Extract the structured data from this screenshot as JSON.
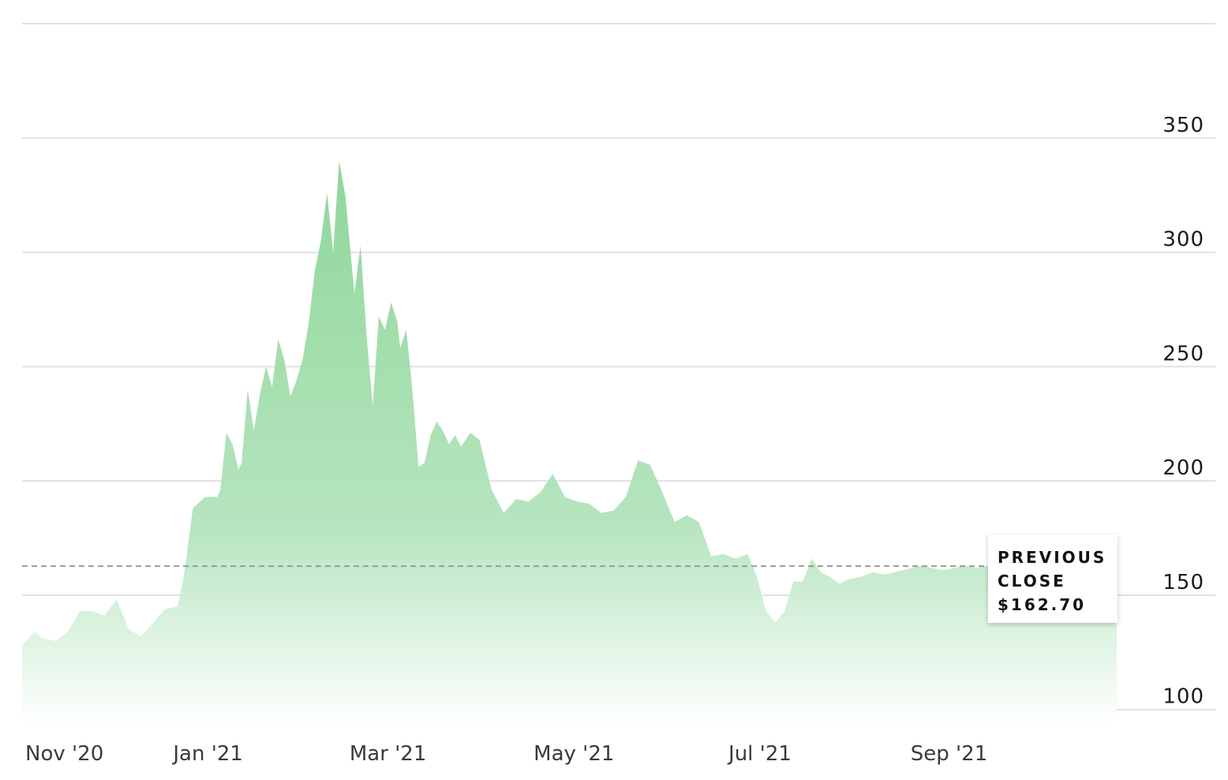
{
  "colors": {
    "area_top": "#8fd69a",
    "area_bottom": "#ffffff",
    "grid": "#e1e1e1",
    "reference_line": "#9a9a9a",
    "text": "#1a1a1a"
  },
  "previous_close": {
    "label_line1": "PREVIOUS",
    "label_line2": "CLOSE",
    "value_text": "$162.70",
    "value": 162.7
  },
  "chart_data": {
    "type": "area",
    "title": "",
    "xlabel": "",
    "ylabel": "",
    "ylim": [
      93,
      400
    ],
    "xlim": [
      "2020-11-01",
      "2021-10-26"
    ],
    "yticks": [
      100,
      150,
      200,
      250,
      300,
      350
    ],
    "ytick_labels": [
      "100",
      "150",
      "200",
      "250",
      "300",
      "350"
    ],
    "xticks": [
      "2020-11-01",
      "2021-01-01",
      "2021-03-01",
      "2021-05-01",
      "2021-07-01",
      "2021-09-01"
    ],
    "xtick_labels": [
      "Nov '20",
      "Jan '21",
      "Mar '21",
      "May '21",
      "Jul '21",
      "Sep '21"
    ],
    "grid": true,
    "legend": "none",
    "series": [
      {
        "x": [
          "2020-11-01",
          "2020-11-05",
          "2020-11-08",
          "2020-11-12",
          "2020-11-16",
          "2020-11-20",
          "2020-11-24",
          "2020-11-28",
          "2020-12-02",
          "2020-12-06",
          "2020-12-10",
          "2020-12-14",
          "2020-12-18",
          "2020-12-22",
          "2020-12-24",
          "2020-12-27",
          "2020-12-31",
          "2021-01-04",
          "2021-01-05",
          "2021-01-07",
          "2021-01-09",
          "2021-01-11",
          "2021-01-12",
          "2021-01-14",
          "2021-01-16",
          "2021-01-18",
          "2021-01-20",
          "2021-01-22",
          "2021-01-24",
          "2021-01-26",
          "2021-01-28",
          "2021-01-30",
          "2021-02-01",
          "2021-02-03",
          "2021-02-05",
          "2021-02-07",
          "2021-02-09",
          "2021-02-11",
          "2021-02-13",
          "2021-02-15",
          "2021-02-17",
          "2021-02-18",
          "2021-02-20",
          "2021-02-22",
          "2021-02-24",
          "2021-02-26",
          "2021-02-28",
          "2021-03-02",
          "2021-03-04",
          "2021-03-05",
          "2021-03-07",
          "2021-03-09",
          "2021-03-11",
          "2021-03-13",
          "2021-03-15",
          "2021-03-17",
          "2021-03-19",
          "2021-03-21",
          "2021-03-23",
          "2021-03-25",
          "2021-03-28",
          "2021-03-31",
          "2021-04-04",
          "2021-04-08",
          "2021-04-12",
          "2021-04-16",
          "2021-04-20",
          "2021-04-24",
          "2021-04-28",
          "2021-05-02",
          "2021-05-06",
          "2021-05-10",
          "2021-05-14",
          "2021-05-18",
          "2021-05-22",
          "2021-05-26",
          "2021-05-30",
          "2021-06-03",
          "2021-06-07",
          "2021-06-11",
          "2021-06-15",
          "2021-06-19",
          "2021-06-23",
          "2021-06-27",
          "2021-06-30",
          "2021-07-03",
          "2021-07-06",
          "2021-07-09",
          "2021-07-12",
          "2021-07-15",
          "2021-07-18",
          "2021-07-21",
          "2021-07-24",
          "2021-07-27",
          "2021-07-30",
          "2021-08-03",
          "2021-08-07",
          "2021-08-11",
          "2021-08-14",
          "2021-08-17",
          "2021-08-20",
          "2021-08-23",
          "2021-08-26",
          "2021-08-30",
          "2021-09-03",
          "2021-09-06",
          "2021-09-10",
          "2021-09-14",
          "2021-09-18",
          "2021-09-22",
          "2021-09-26",
          "2021-09-30",
          "2021-10-04",
          "2021-10-08",
          "2021-10-12",
          "2021-10-16",
          "2021-10-20",
          "2021-10-24",
          "2021-10-26"
        ],
        "y": [
          128,
          134,
          131,
          130,
          134,
          143,
          143,
          141,
          148,
          135,
          132,
          138,
          144,
          145,
          158,
          188,
          193,
          193,
          196,
          221,
          216,
          205,
          208,
          240,
          222,
          238,
          250,
          241,
          262,
          253,
          237,
          244,
          253,
          269,
          292,
          305,
          326,
          300,
          340,
          325,
          296,
          282,
          303,
          263,
          233,
          272,
          266,
          278,
          270,
          258,
          266,
          240,
          206,
          208,
          220,
          226,
          222,
          216,
          220,
          215,
          221,
          218,
          196,
          186,
          192,
          191,
          195,
          203,
          193,
          191,
          190,
          186,
          187,
          193,
          209,
          207,
          195,
          182,
          185,
          182,
          167,
          168,
          166,
          168,
          158,
          143,
          138,
          143,
          156,
          156,
          166,
          160,
          158,
          155,
          157,
          158,
          160,
          159,
          160,
          161,
          162,
          163,
          162,
          161,
          162,
          163,
          162,
          163,
          162,
          161,
          162,
          163,
          162,
          162,
          163,
          162,
          162,
          162,
          162
        ],
        "name": ""
      }
    ]
  }
}
